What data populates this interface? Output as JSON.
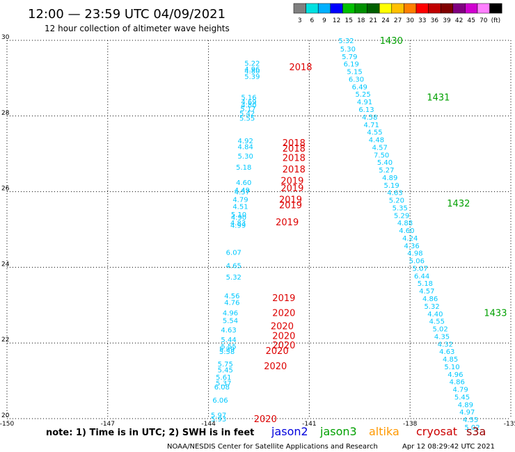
{
  "header": {
    "title": "12:00 — 23:59 UTC 04/09/2021",
    "subtitle": "12 hour collection of altimeter wave heights",
    "scale_labels": [
      "3",
      "6",
      "9",
      "12",
      "15",
      "18",
      "21",
      "24",
      "27",
      "30",
      "33",
      "36",
      "39",
      "42",
      "45",
      "70",
      "(ft)"
    ],
    "scale_colors": [
      "#808080",
      "#00e0e0",
      "#00b0ff",
      "#0000ff",
      "#00c000",
      "#009000",
      "#006000",
      "#ffff00",
      "#ffc000",
      "#ff8000",
      "#ff0000",
      "#c00000",
      "#800000",
      "#800080",
      "#d000d0",
      "#ff80ff",
      "#000000"
    ]
  },
  "legend": {
    "note": "note: 1) Time is in UTC; 2) SWH is in feet",
    "sats": [
      {
        "name": "jason2",
        "color": "#0000dd"
      },
      {
        "name": "jason3",
        "color": "#00a000"
      },
      {
        "name": "altika",
        "color": "#ff9900"
      },
      {
        "name": "cryosat",
        "color": "#cc0000"
      },
      {
        "name": "s3a",
        "color": "#990000"
      }
    ]
  },
  "footer": {
    "credit": "NOAA/NESDIS Center for Satellite Applications and Research",
    "timestamp": "Apr 12 08:29:42 UTC 2021"
  },
  "chart_data": {
    "type": "scatter",
    "xlim": [
      -150,
      -135
    ],
    "ylim": [
      20,
      30
    ],
    "grid": true,
    "x_ticks": [
      "-150",
      "-147",
      "-144",
      "-141",
      "-138",
      "-135"
    ],
    "y_ticks": [
      "20",
      "22",
      "24",
      "26",
      "28",
      "30"
    ],
    "wave_color": "#00c8ff",
    "series": [
      {
        "name": "jason3",
        "color": "#00a000",
        "times": [
          {
            "label": "1430",
            "x": -138.9,
            "y": 30.0
          },
          {
            "label": "1431",
            "x": -137.5,
            "y": 28.5
          },
          {
            "label": "1432",
            "x": -136.9,
            "y": 25.7
          },
          {
            "label": "1433",
            "x": -135.8,
            "y": 22.8
          }
        ],
        "points": [
          {
            "x": -139.9,
            "y": 30.0,
            "v": "5.32"
          },
          {
            "x": -139.85,
            "y": 29.78,
            "v": "5.30"
          },
          {
            "x": -139.8,
            "y": 29.58,
            "v": "5.79"
          },
          {
            "x": -139.75,
            "y": 29.38,
            "v": "6.19"
          },
          {
            "x": -139.65,
            "y": 29.18,
            "v": "5.15"
          },
          {
            "x": -139.6,
            "y": 28.98,
            "v": "6.30"
          },
          {
            "x": -139.5,
            "y": 28.78,
            "v": "6.49"
          },
          {
            "x": -139.4,
            "y": 28.58,
            "v": "5.25"
          },
          {
            "x": -139.35,
            "y": 28.38,
            "v": "4.91"
          },
          {
            "x": -139.3,
            "y": 28.18,
            "v": "6.13"
          },
          {
            "x": -139.2,
            "y": 27.98,
            "v": "4.58"
          },
          {
            "x": -139.15,
            "y": 27.78,
            "v": "4.71"
          },
          {
            "x": -139.05,
            "y": 27.58,
            "v": "4.55"
          },
          {
            "x": -139.0,
            "y": 27.38,
            "v": "4.48"
          },
          {
            "x": -138.9,
            "y": 27.18,
            "v": "4.57"
          },
          {
            "x": -138.85,
            "y": 26.98,
            "v": "7.50"
          },
          {
            "x": -138.75,
            "y": 26.78,
            "v": "5.40"
          },
          {
            "x": -138.7,
            "y": 26.58,
            "v": "5.27"
          },
          {
            "x": -138.6,
            "y": 26.38,
            "v": "4.89"
          },
          {
            "x": -138.55,
            "y": 26.18,
            "v": "5.19"
          },
          {
            "x": -138.45,
            "y": 25.98,
            "v": "4.63"
          },
          {
            "x": -138.4,
            "y": 25.78,
            "v": "5.20"
          },
          {
            "x": -138.3,
            "y": 25.58,
            "v": "5.35"
          },
          {
            "x": -138.25,
            "y": 25.38,
            "v": "5.29"
          },
          {
            "x": -138.15,
            "y": 25.18,
            "v": "4.88"
          },
          {
            "x": -138.1,
            "y": 24.98,
            "v": "4.60"
          },
          {
            "x": -138.0,
            "y": 24.78,
            "v": "4.24"
          },
          {
            "x": -137.95,
            "y": 24.58,
            "v": "4.36"
          },
          {
            "x": -137.85,
            "y": 24.38,
            "v": "4.98"
          },
          {
            "x": -137.8,
            "y": 24.18,
            "v": "5.06"
          },
          {
            "x": -137.7,
            "y": 23.98,
            "v": "5.07"
          },
          {
            "x": -137.65,
            "y": 23.78,
            "v": "6.44"
          },
          {
            "x": -137.55,
            "y": 23.58,
            "v": "5.18"
          },
          {
            "x": -137.5,
            "y": 23.38,
            "v": "4.57"
          },
          {
            "x": -137.4,
            "y": 23.18,
            "v": "4.86"
          },
          {
            "x": -137.35,
            "y": 22.98,
            "v": "5.32"
          },
          {
            "x": -137.25,
            "y": 22.78,
            "v": "4.40"
          },
          {
            "x": -137.2,
            "y": 22.58,
            "v": "4.55"
          },
          {
            "x": -137.1,
            "y": 22.38,
            "v": "5.02"
          },
          {
            "x": -137.05,
            "y": 22.18,
            "v": "4.35"
          },
          {
            "x": -136.95,
            "y": 21.98,
            "v": "4.32"
          },
          {
            "x": -136.9,
            "y": 21.78,
            "v": "4.63"
          },
          {
            "x": -136.8,
            "y": 21.58,
            "v": "4.85"
          },
          {
            "x": -136.75,
            "y": 21.38,
            "v": "5.10"
          },
          {
            "x": -136.65,
            "y": 21.18,
            "v": "4.96"
          },
          {
            "x": -136.6,
            "y": 20.98,
            "v": "4.86"
          },
          {
            "x": -136.5,
            "y": 20.78,
            "v": "4.79"
          },
          {
            "x": -136.45,
            "y": 20.58,
            "v": "5.45"
          },
          {
            "x": -136.35,
            "y": 20.38,
            "v": "4.89"
          },
          {
            "x": -136.3,
            "y": 20.18,
            "v": "4.97"
          },
          {
            "x": -136.2,
            "y": 19.98,
            "v": "4.55"
          },
          {
            "x": -136.15,
            "y": 19.78,
            "v": "5.02"
          }
        ]
      },
      {
        "name": "cryosat",
        "color": "#dd0000",
        "times": [
          {
            "label": "2018",
            "x": -141.6,
            "y": 29.3
          },
          {
            "label": "2018",
            "x": -141.8,
            "y": 27.3
          },
          {
            "label": "2018",
            "x": -141.8,
            "y": 27.15
          },
          {
            "label": "2018",
            "x": -141.8,
            "y": 26.9
          },
          {
            "label": "2018",
            "x": -141.8,
            "y": 26.6
          },
          {
            "label": "2019",
            "x": -141.85,
            "y": 26.3
          },
          {
            "label": "2019",
            "x": -141.85,
            "y": 26.1
          },
          {
            "label": "2019",
            "x": -141.9,
            "y": 25.8
          },
          {
            "label": "2019",
            "x": -141.9,
            "y": 25.65
          },
          {
            "label": "2019",
            "x": -142.0,
            "y": 25.2
          },
          {
            "label": "2019",
            "x": -142.1,
            "y": 23.2
          },
          {
            "label": "2020",
            "x": -142.1,
            "y": 22.8
          },
          {
            "label": "2020",
            "x": -142.15,
            "y": 22.45
          },
          {
            "label": "2020",
            "x": -142.1,
            "y": 22.2
          },
          {
            "label": "2020",
            "x": -142.1,
            "y": 21.95
          },
          {
            "label": "2020",
            "x": -142.3,
            "y": 21.8
          },
          {
            "label": "2020",
            "x": -142.35,
            "y": 21.4
          },
          {
            "label": "2020",
            "x": -142.65,
            "y": 20.0
          }
        ],
        "points": [
          {
            "x": -142.7,
            "y": 29.4,
            "v": "5.22"
          },
          {
            "x": -142.7,
            "y": 29.25,
            "v": "4.96"
          },
          {
            "x": -142.7,
            "y": 29.2,
            "v": "4.80"
          },
          {
            "x": -142.7,
            "y": 29.05,
            "v": "5.39"
          },
          {
            "x": -142.8,
            "y": 28.5,
            "v": "5.16"
          },
          {
            "x": -142.8,
            "y": 28.38,
            "v": "4.69"
          },
          {
            "x": -142.8,
            "y": 28.3,
            "v": "4.80"
          },
          {
            "x": -142.82,
            "y": 28.2,
            "v": "5.17"
          },
          {
            "x": -142.85,
            "y": 28.08,
            "v": "5.42"
          },
          {
            "x": -142.85,
            "y": 27.95,
            "v": "5.55"
          },
          {
            "x": -142.9,
            "y": 27.35,
            "v": "4.92"
          },
          {
            "x": -142.9,
            "y": 27.2,
            "v": "4.84"
          },
          {
            "x": -142.9,
            "y": 26.95,
            "v": "5.30"
          },
          {
            "x": -142.95,
            "y": 26.65,
            "v": "5.18"
          },
          {
            "x": -142.95,
            "y": 26.25,
            "v": "4.60"
          },
          {
            "x": -143.0,
            "y": 26.05,
            "v": "4.49"
          },
          {
            "x": -143.0,
            "y": 26.0,
            "v": "4.57"
          },
          {
            "x": -143.05,
            "y": 25.8,
            "v": "4.79"
          },
          {
            "x": -143.05,
            "y": 25.62,
            "v": "4.51"
          },
          {
            "x": -143.1,
            "y": 25.4,
            "v": "5.10"
          },
          {
            "x": -143.1,
            "y": 25.33,
            "v": "4.90"
          },
          {
            "x": -143.12,
            "y": 25.18,
            "v": "4.83"
          },
          {
            "x": -143.12,
            "y": 25.12,
            "v": "4.99"
          },
          {
            "x": -143.25,
            "y": 24.4,
            "v": "6.07"
          },
          {
            "x": -143.25,
            "y": 24.05,
            "v": "4.65"
          },
          {
            "x": -143.25,
            "y": 23.75,
            "v": "5.32"
          },
          {
            "x": -143.3,
            "y": 23.25,
            "v": "4.56"
          },
          {
            "x": -143.3,
            "y": 23.08,
            "v": "4.76"
          },
          {
            "x": -143.35,
            "y": 22.8,
            "v": "4.96"
          },
          {
            "x": -143.35,
            "y": 22.6,
            "v": "5.54"
          },
          {
            "x": -143.4,
            "y": 22.35,
            "v": "4.63"
          },
          {
            "x": -143.4,
            "y": 22.1,
            "v": "5.44"
          },
          {
            "x": -143.4,
            "y": 21.92,
            "v": "5.55"
          },
          {
            "x": -143.45,
            "y": 21.85,
            "v": "5.39"
          },
          {
            "x": -143.45,
            "y": 21.78,
            "v": "5.58"
          },
          {
            "x": -143.5,
            "y": 21.45,
            "v": "5.75"
          },
          {
            "x": -143.5,
            "y": 21.3,
            "v": "5.45"
          },
          {
            "x": -143.55,
            "y": 21.1,
            "v": "5.61"
          },
          {
            "x": -143.55,
            "y": 20.95,
            "v": "5.37"
          },
          {
            "x": -143.6,
            "y": 20.85,
            "v": "6.08"
          },
          {
            "x": -143.65,
            "y": 20.5,
            "v": "6.06"
          },
          {
            "x": -143.7,
            "y": 20.1,
            "v": "5.97"
          },
          {
            "x": -143.7,
            "y": 20.0,
            "v": "5.93"
          }
        ]
      }
    ]
  }
}
